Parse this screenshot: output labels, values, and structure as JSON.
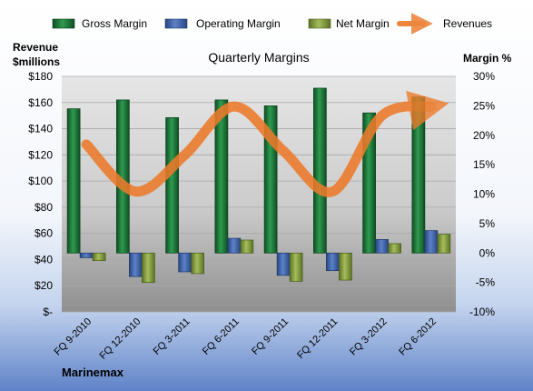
{
  "company": "Marinemax",
  "chart_data": {
    "type": "bar",
    "title": "Quarterly Margins",
    "categories": [
      "FQ 9-2010",
      "FQ 12-2010",
      "FQ 3-2011",
      "FQ 6-2011",
      "FQ 9-2011",
      "FQ 12-2011",
      "FQ 3-2012",
      "FQ 6-2012"
    ],
    "series": [
      {
        "name": "Gross Margin",
        "axis": "right",
        "kind": "bar",
        "values": [
          24.5,
          26.0,
          23.0,
          26.0,
          25.0,
          28.0,
          23.8,
          26.5
        ]
      },
      {
        "name": "Operating Margin",
        "axis": "right",
        "kind": "bar",
        "values": [
          -0.8,
          -4.0,
          -3.2,
          2.5,
          -3.8,
          -3.0,
          2.3,
          3.8
        ]
      },
      {
        "name": "Net Margin",
        "axis": "right",
        "kind": "bar",
        "values": [
          -1.3,
          -5.0,
          -3.5,
          2.2,
          -4.8,
          -4.6,
          1.6,
          3.2
        ]
      },
      {
        "name": "Revenues",
        "axis": "left",
        "kind": "line",
        "values": [
          128,
          92,
          120,
          157,
          123,
          92,
          150,
          157
        ]
      }
    ],
    "ylabel_left": "Revenue $millions",
    "ylabel_right": "Margin %",
    "ylim_left": [
      0,
      180
    ],
    "ylim_right": [
      -10,
      30
    ],
    "yticks_left": [
      "$-",
      "$20",
      "$40",
      "$60",
      "$80",
      "$100",
      "$120",
      "$140",
      "$160",
      "$180"
    ],
    "yticks_right": [
      "-10%",
      "-5%",
      "0%",
      "5%",
      "10%",
      "15%",
      "20%",
      "25%",
      "30%"
    ],
    "grid": true,
    "legend_position": "top",
    "colors": {
      "Gross Margin": "#1f7a3a",
      "Operating Margin": "#3e63a8",
      "Net Margin": "#7f9a3a",
      "Revenues": "#ec7a2a"
    }
  }
}
